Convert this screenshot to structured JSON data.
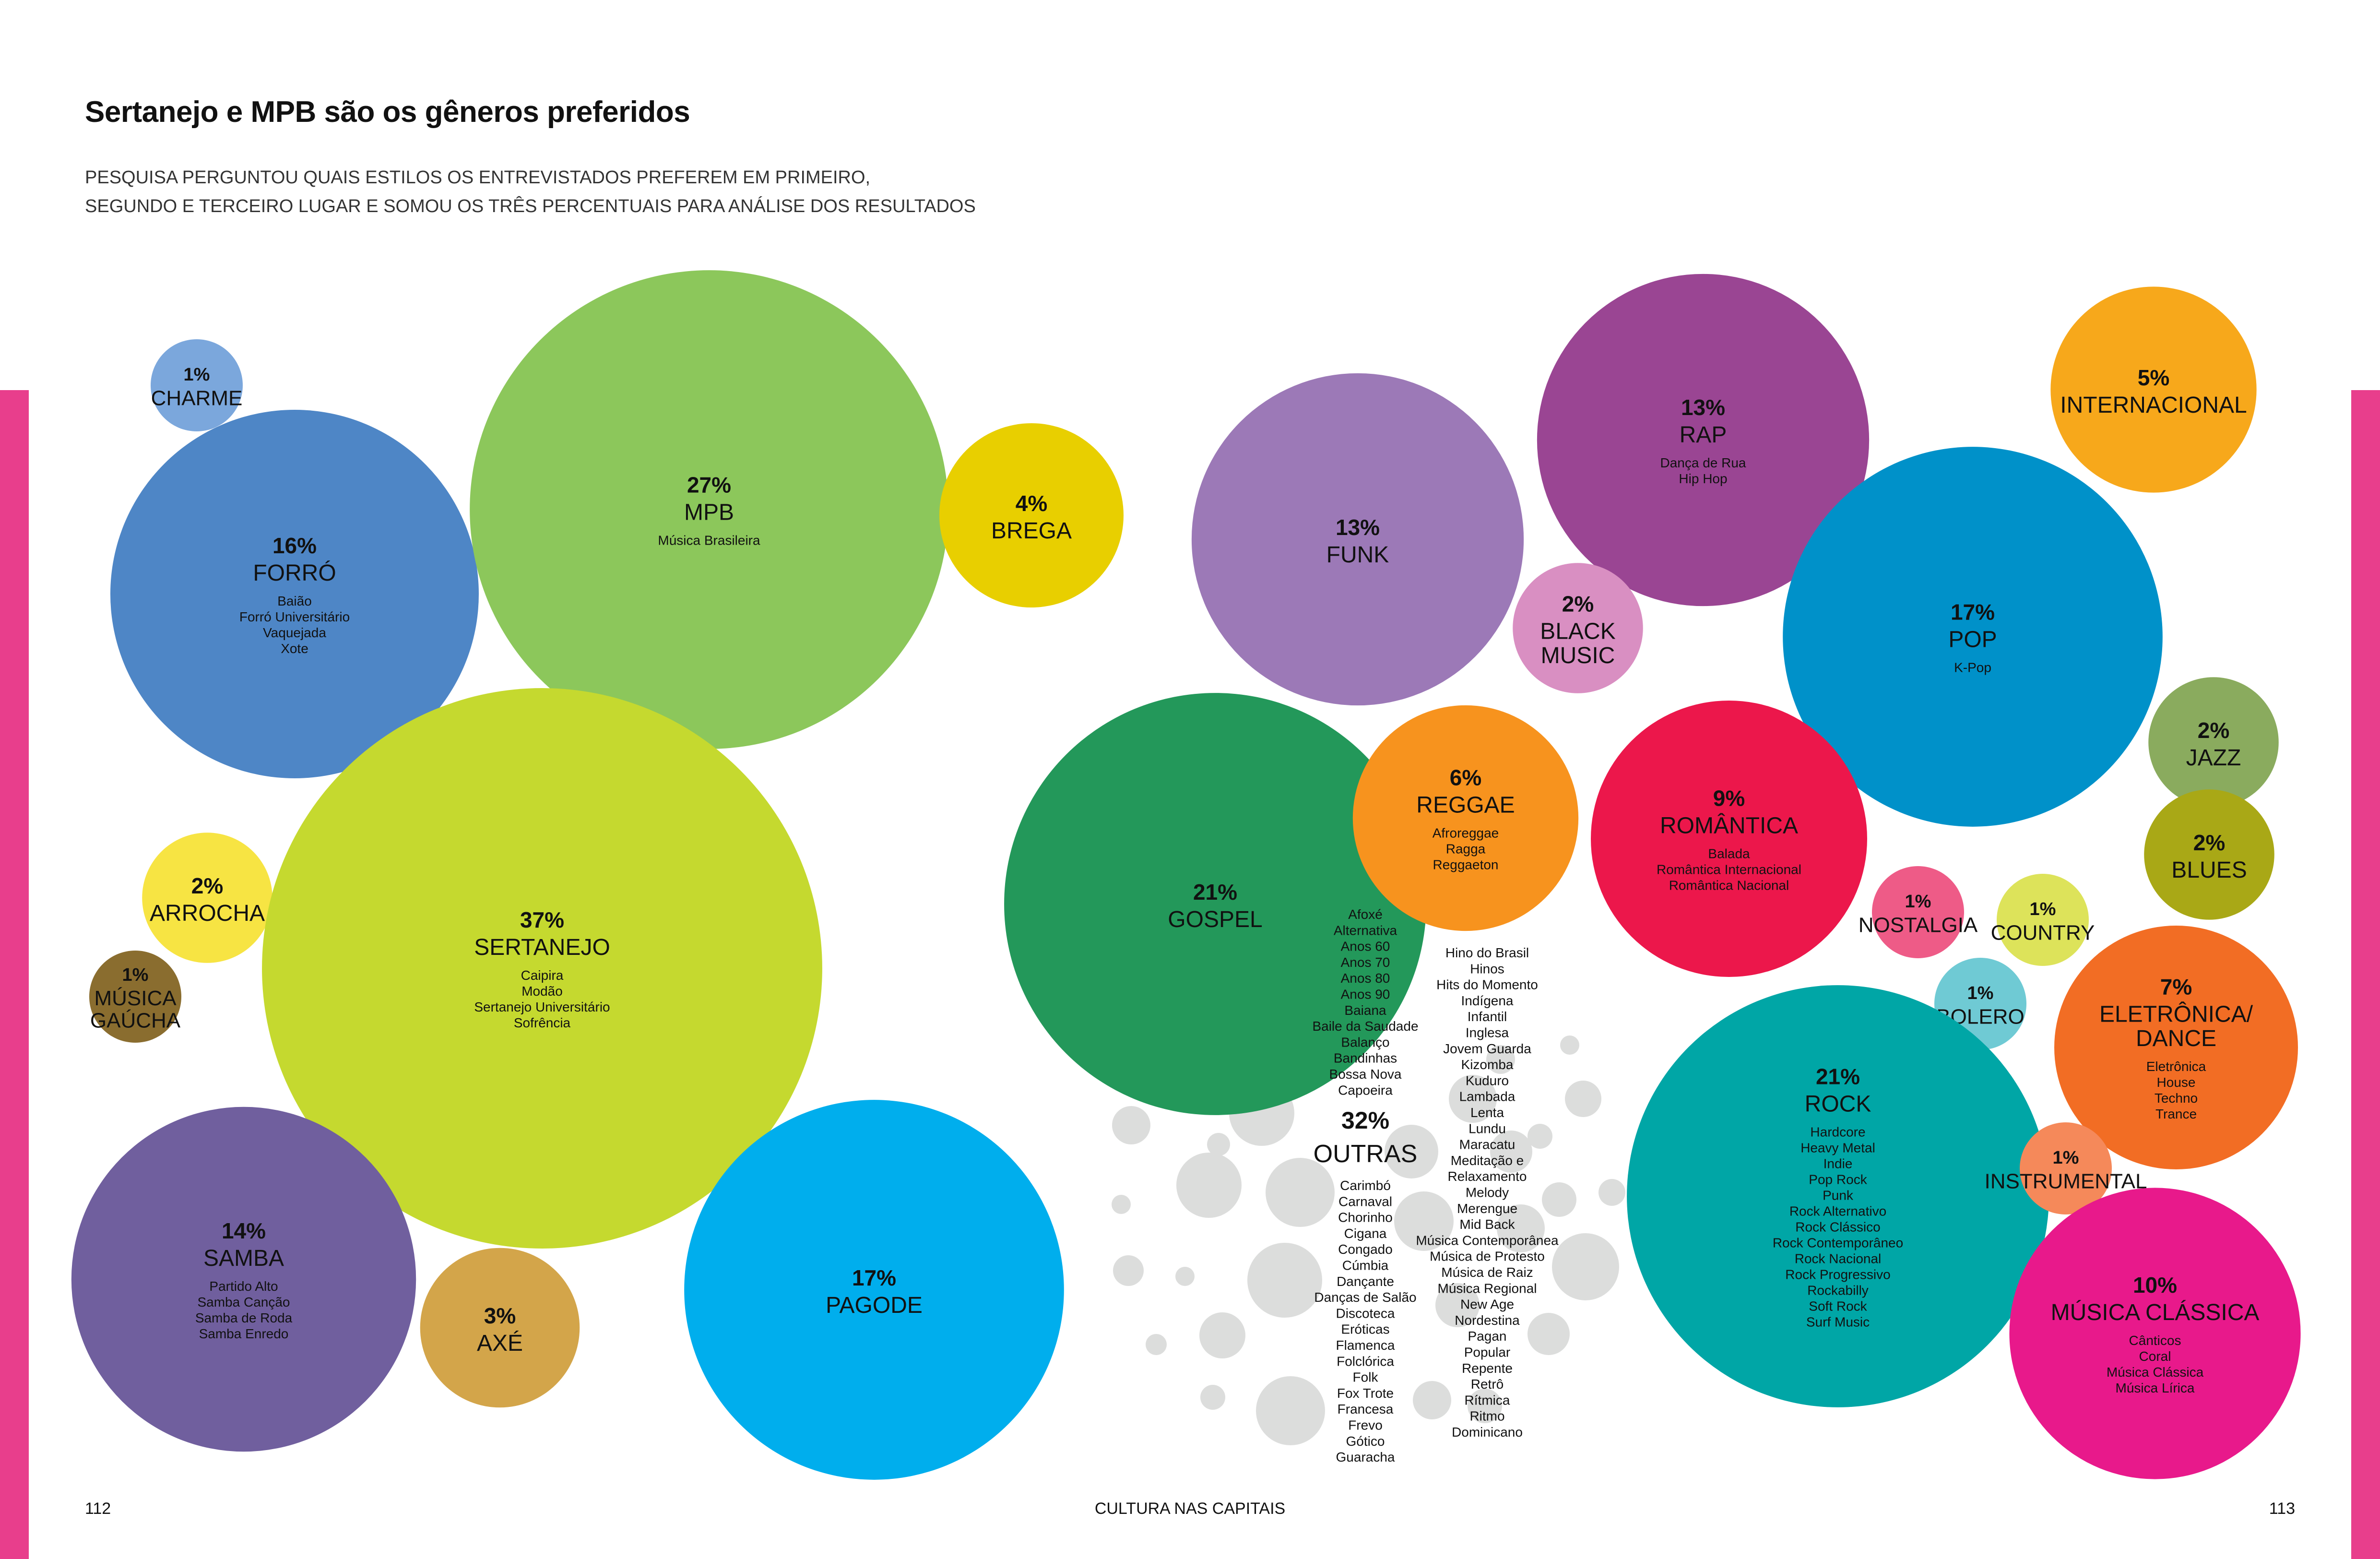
{
  "page": {
    "accent_color": "#e83e8c",
    "title": "Sertanejo e MPB são os gêneros preferidos",
    "subtitle": "PESQUISA PERGUNTOU QUAIS ESTILOS OS ENTREVISTADOS PREFEREM EM PRIMEIRO,\nSEGUNDO E TERCEIRO LUGAR E SOMOU OS TRÊS PERCENTUAIS PARA ANÁLISE DOS RESULTADOS",
    "footer": {
      "page_left": "112",
      "center": "CULTURA NAS CAPITAIS",
      "page_right": "113"
    }
  },
  "chart_data": {
    "type": "bubble",
    "title": "Sertanejo e MPB são os gêneros preferidos",
    "unit": "%",
    "genres": [
      {
        "name": "CHARME",
        "value": 1,
        "subgenres": [],
        "color": "#7ba7dc"
      },
      {
        "name": "FORRÓ",
        "value": 16,
        "subgenres": [
          "Baião",
          "Forró Universitário",
          "Vaquejada",
          "Xote"
        ],
        "color": "#4e86c6"
      },
      {
        "name": "MPB",
        "value": 27,
        "subgenres": [
          "Música Brasileira"
        ],
        "color": "#8cc75b"
      },
      {
        "name": "BREGA",
        "value": 4,
        "subgenres": [],
        "color": "#e8cf00"
      },
      {
        "name": "FUNK",
        "value": 13,
        "subgenres": [],
        "color": "#9c79b7"
      },
      {
        "name": "RAP",
        "value": 13,
        "subgenres": [
          "Dança de Rua",
          "Hip Hop"
        ],
        "color": "#9a4593"
      },
      {
        "name": "INTERNACIONAL",
        "value": 5,
        "subgenres": [],
        "color": "#f7a81b"
      },
      {
        "name": "BLACK MUSIC",
        "value": 2,
        "subgenres": [],
        "color": "#d98fc2"
      },
      {
        "name": "POP",
        "value": 17,
        "subgenres": [
          "K-Pop"
        ],
        "color": "#0091c9"
      },
      {
        "name": "JAZZ",
        "value": 2,
        "subgenres": [],
        "color": "#8aab5e"
      },
      {
        "name": "BLUES",
        "value": 2,
        "subgenres": [],
        "color": "#a9a816"
      },
      {
        "name": "ARROCHA",
        "value": 2,
        "subgenres": [],
        "color": "#f7e443"
      },
      {
        "name": "SERTANEJO",
        "value": 37,
        "subgenres": [
          "Caipira",
          "Modão",
          "Sertanejo Universitário",
          "Sofrência"
        ],
        "color": "#c5d92f"
      },
      {
        "name": "GOSPEL",
        "value": 21,
        "subgenres": [],
        "color": "#23985a"
      },
      {
        "name": "REGGAE",
        "value": 6,
        "subgenres": [
          "Afroreggae",
          "Ragga",
          "Reggaeton"
        ],
        "color": "#f7931e"
      },
      {
        "name": "ROMÂNTICA",
        "value": 9,
        "subgenres": [
          "Balada",
          "Romântica Internacional",
          "Romântica Nacional"
        ],
        "color": "#ec174b"
      },
      {
        "name": "NOSTALGIA",
        "value": 1,
        "subgenres": [],
        "color": "#ee5b87"
      },
      {
        "name": "COUNTRY",
        "value": 1,
        "subgenres": [],
        "color": "#dde35a"
      },
      {
        "name": "MÚSICA GAÚCHA",
        "value": 1,
        "subgenres": [],
        "color": "#8a6d2f"
      },
      {
        "name": "BOLERO",
        "value": 1,
        "subgenres": [],
        "color": "#6fcad4"
      },
      {
        "name": "ELETRÔNICA/ DANCE",
        "value": 7,
        "subgenres": [
          "Eletrônica",
          "House",
          "Techno",
          "Trance"
        ],
        "color": "#f26d24"
      },
      {
        "name": "ROCK",
        "value": 21,
        "subgenres": [
          "Hardcore",
          "Heavy Metal",
          "Indie",
          "Pop Rock",
          "Punk",
          "Rock Alternativo",
          "Rock Clássico",
          "Rock Contemporâneo",
          "Rock Nacional",
          "Rock Progressivo",
          "Rockabilly",
          "Soft Rock",
          "Surf Music"
        ],
        "color": "#00a6a6"
      },
      {
        "name": "INSTRUMENTAL",
        "value": 1,
        "subgenres": [],
        "color": "#f5895a"
      },
      {
        "name": "SAMBA",
        "value": 14,
        "subgenres": [
          "Partido Alto",
          "Samba Canção",
          "Samba de Roda",
          "Samba Enredo"
        ],
        "color": "#705f9e"
      },
      {
        "name": "AXÉ",
        "value": 3,
        "subgenres": [],
        "color": "#d3a54a"
      },
      {
        "name": "PAGODE",
        "value": 17,
        "subgenres": [],
        "color": "#00aeed"
      },
      {
        "name": "MÚSICA CLÁSSICA",
        "value": 10,
        "subgenres": [
          "Cânticos",
          "Coral",
          "Música Clássica",
          "Música Lírica"
        ],
        "color": "#e8198b"
      }
    ],
    "outras": {
      "name": "OUTRAS",
      "value": 32,
      "color": "#dcdddc",
      "list_left_top": [
        "Afoxé",
        "Alternativa",
        "Anos 60",
        "Anos 70",
        "Anos 80",
        "Anos 90",
        "Baiana",
        "Baile da Saudade",
        "Balanço",
        "Bandinhas",
        "Bossa Nova",
        "Capoeira"
      ],
      "list_left_bottom": [
        "Carimbó",
        "Carnaval",
        "Chorinho",
        "Cigana",
        "Congado",
        "Cúmbia",
        "Dançante",
        "Danças de Salão",
        "Discoteca",
        "Eróticas",
        "Flamenca",
        "Folclórica",
        "Folk",
        "Fox Trote",
        "Francesa",
        "Frevo",
        "Gótico",
        "Guaracha"
      ],
      "list_right": [
        "Hino do Brasil",
        "Hinos",
        "Hits do Momento",
        "Indígena",
        "Infantil",
        "Inglesa",
        "Jovem Guarda",
        "Kizomba",
        "Kuduro",
        "Lambada",
        "Lenta",
        "Lundu",
        "Maracatu",
        "Meditação e",
        "Relaxamento",
        "Melody",
        "Merengue",
        "Mid Back",
        "Música Contemporânea",
        "Música de Protesto",
        "Música de Raiz",
        "Música Regional",
        "New Age",
        "Nordestina",
        "Pagan",
        "Popular",
        "Repente",
        "Retrô",
        "Rítmica",
        "Ritmo",
        "Dominicano"
      ]
    }
  }
}
